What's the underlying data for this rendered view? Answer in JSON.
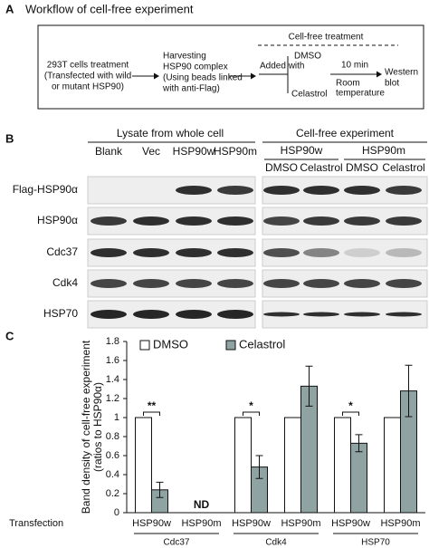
{
  "panel_a": {
    "label": "A",
    "title": "Workflow of cell-free experiment",
    "step1": [
      "293T cells treatment",
      "(Transfected with wild",
      "or mutant HSP90)"
    ],
    "step2": [
      "Harvesting",
      "HSP90 complex",
      "(Using beads linked",
      "with anti-Flag)"
    ],
    "treatment_header": "Cell-free treatment",
    "added_with": "Added with",
    "option1": "DMSO",
    "option2": "Celastrol",
    "incubation": "10 min",
    "condition": [
      "Room",
      "temperature"
    ],
    "readout": [
      "Western",
      "blot"
    ]
  },
  "panel_b": {
    "label": "B",
    "lysate_header": "Lysate from whole cell",
    "lysate_lanes": [
      "Blank",
      "Vec",
      "HSP90w",
      "HSP90m"
    ],
    "cellfree_header": "Cell-free experiment",
    "cellfree_groups": [
      "HSP90w",
      "HSP90m"
    ],
    "cellfree_lanes": [
      "DMSO",
      "Celastrol",
      "DMSO",
      "Celastrol"
    ],
    "rows": [
      "Flag-HSP90α",
      "HSP90α",
      "Cdc37",
      "Cdk4",
      "HSP70"
    ]
  },
  "chart_data": {
    "type": "bar",
    "panel_label": "C",
    "ylabel": [
      "Band density of cell-free experiment",
      "(ratios to HSP90α)"
    ],
    "xlabel": "Transfection",
    "categories": [
      "HSP90w",
      "HSP90m",
      "HSP90w",
      "HSP90m",
      "HSP90w",
      "HSP90m"
    ],
    "groups": [
      "Cdc37",
      "Cdk4",
      "HSP70"
    ],
    "series": [
      {
        "name": "DMSO",
        "color": "#ffffff",
        "values": [
          1,
          null,
          1,
          1,
          1,
          1
        ]
      },
      {
        "name": "Celastrol",
        "color": "#8fa3a3",
        "values": [
          0.24,
          null,
          0.48,
          1.33,
          0.73,
          1.28
        ],
        "errors": [
          0.08,
          null,
          0.12,
          0.21,
          0.09,
          0.27
        ]
      }
    ],
    "missing_label": "ND",
    "significance": [
      "**",
      null,
      "*",
      null,
      "*",
      null
    ],
    "ylim": [
      0,
      1.8
    ],
    "yticks": [
      0,
      0.2,
      0.4,
      0.6,
      0.8,
      1,
      1.2,
      1.4,
      1.6,
      1.8
    ]
  }
}
